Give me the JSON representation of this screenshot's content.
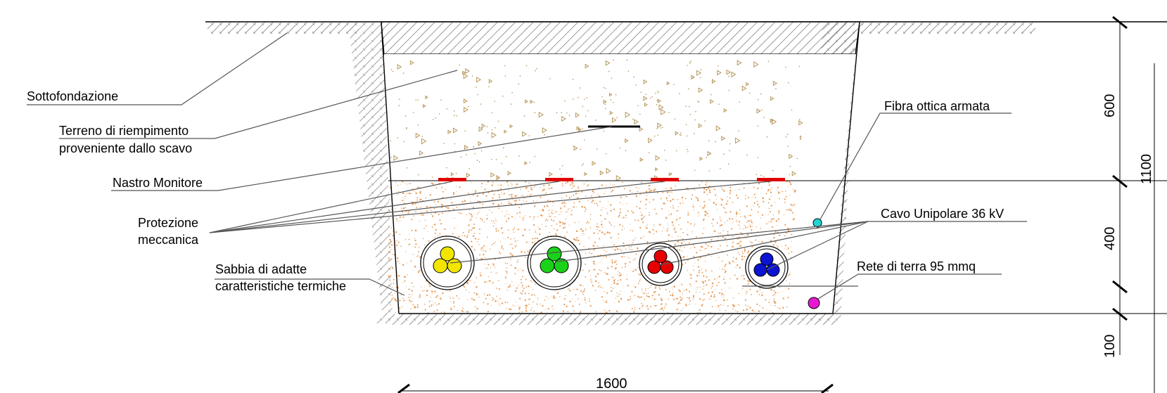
{
  "labels": {
    "sottofondazione": "Sottofondazione",
    "terreno_line1": "Terreno di riempimento",
    "terreno_line2": "proveniente dallo scavo",
    "nastro": "Nastro Monitore",
    "protezione_line1": "Protezione",
    "protezione_line2": "meccanica",
    "sabbia_line1": "Sabbia di adatte",
    "sabbia_line2": "caratteristiche termiche",
    "fibra": "Fibra ottica armata",
    "cavo": "Cavo Unipolare 36 kV",
    "rete": "Rete di terra 95 mmq"
  },
  "dimensions": {
    "width": "1600",
    "depth_top": "600",
    "depth_mid": "400",
    "depth_bottom": "100",
    "depth_total_partial": "1100"
  },
  "colors": {
    "cable_1": "#f2e600",
    "cable_2": "#19d219",
    "cable_3": "#e60000",
    "cable_4": "#0a14d2",
    "fibra": "#22d3d3",
    "rete": "#e619d2",
    "tape": "#e00000",
    "sand_dots": "#e7a060",
    "fill_marks": "#b5965a",
    "hatch": "#777777"
  }
}
